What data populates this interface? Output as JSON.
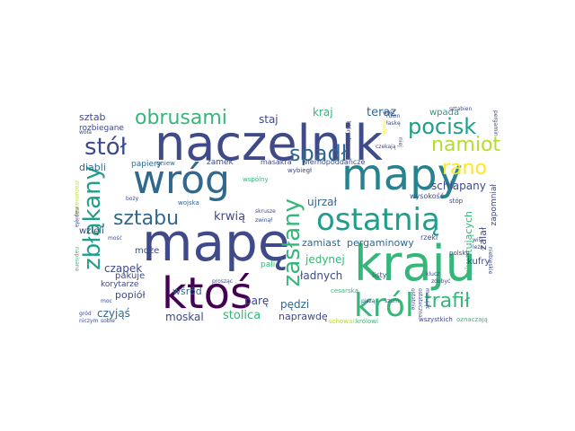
{
  "palette": {
    "dark_purple": "#440154",
    "indigo": "#482878",
    "slate_blue": "#3e4a89",
    "blue": "#31688e",
    "teal": "#26828e",
    "sea_green": "#1f9e89",
    "green": "#35b779",
    "light_green": "#6ece58",
    "lime": "#b5de2b",
    "yellow": "#fde725"
  },
  "words": [
    {
      "text": "naczelnik",
      "color": "#3e4a89"
    },
    {
      "text": "mapę",
      "color": "#3e4a89"
    },
    {
      "text": "wróg",
      "color": "#31688e"
    },
    {
      "text": "mapy",
      "color": "#26828e"
    },
    {
      "text": "kraju",
      "color": "#35b779"
    },
    {
      "text": "ktoś",
      "color": "#440154"
    },
    {
      "text": "ostatnią",
      "color": "#1f9e89"
    },
    {
      "text": "król",
      "color": "#35b779"
    },
    {
      "text": "zasłany",
      "color": "#35b779"
    },
    {
      "text": "zbłąkany",
      "color": "#1f9e89"
    },
    {
      "text": "obrusami",
      "color": "#35b779"
    },
    {
      "text": "stół",
      "color": "#3e4a89"
    },
    {
      "text": "spadł",
      "color": "#31688e"
    },
    {
      "text": "sztabu",
      "color": "#31688e"
    },
    {
      "text": "pocisk",
      "color": "#1f9e89"
    },
    {
      "text": "namiot",
      "color": "#b5de2b"
    },
    {
      "text": "rano",
      "color": "#fde725"
    },
    {
      "text": "trafił",
      "color": "#35b779"
    },
    {
      "text": "krwią",
      "color": "#3e4a89"
    },
    {
      "text": "sztab",
      "color": "#3e4a89"
    },
    {
      "text": "staj",
      "color": "#3e4a89"
    },
    {
      "text": "kraj",
      "color": "#35b779"
    },
    {
      "text": "teraz",
      "color": "#31688e"
    },
    {
      "text": "wpada",
      "color": "#1f9e89"
    },
    {
      "text": "ujrzał",
      "color": "#31688e"
    },
    {
      "text": "schlapany",
      "color": "#3e4a89"
    },
    {
      "text": "zamiast",
      "color": "#31688e"
    },
    {
      "text": "pergaminowy",
      "color": "#31688e"
    },
    {
      "text": "jedynej",
      "color": "#35b779"
    },
    {
      "text": "ładnych",
      "color": "#3e4a89"
    },
    {
      "text": "pędzi",
      "color": "#31688e"
    },
    {
      "text": "naprawdę",
      "color": "#3e4a89"
    },
    {
      "text": "stolica",
      "color": "#35b779"
    },
    {
      "text": "moskal",
      "color": "#3e4a89"
    },
    {
      "text": "czyjąś",
      "color": "#31688e"
    },
    {
      "text": "popiół",
      "color": "#3e4a89"
    },
    {
      "text": "czapek",
      "color": "#3e4a89"
    },
    {
      "text": "wśród",
      "color": "#31688e"
    },
    {
      "text": "parę",
      "color": "#3e4a89"
    },
    {
      "text": "może",
      "color": "#3e4a89"
    },
    {
      "text": "wzięli",
      "color": "#3e4a89"
    },
    {
      "text": "diabli",
      "color": "#31688e"
    },
    {
      "text": "papiery",
      "color": "#31688e"
    },
    {
      "text": "zamek",
      "color": "#3e4a89"
    },
    {
      "text": "pali",
      "color": "#35b779"
    },
    {
      "text": "pakuje",
      "color": "#3e4a89"
    },
    {
      "text": "korytarze",
      "color": "#3e4a89"
    },
    {
      "text": "rozbiegane",
      "color": "#3e4a89"
    },
    {
      "text": "wiwatujących",
      "color": "#35b779"
    },
    {
      "text": "zalał",
      "color": "#3e4a89"
    },
    {
      "text": "zapomniał",
      "color": "#3e4a89"
    },
    {
      "text": "kufry",
      "color": "#3e4a89"
    },
    {
      "text": "wiernopoddańcze",
      "color": "#3e4a89"
    },
    {
      "text": "masakra",
      "color": "#3e4a89"
    },
    {
      "text": "wybiegł",
      "color": "#3e4a89"
    },
    {
      "text": "wspólny",
      "color": "#35b779"
    },
    {
      "text": "wojska",
      "color": "#31688e"
    },
    {
      "text": "gniew",
      "color": "#31688e"
    },
    {
      "text": "wysokość",
      "color": "#3e4a89"
    },
    {
      "text": "stóp",
      "color": "#3e4a89"
    },
    {
      "text": "listy",
      "color": "#3e4a89"
    },
    {
      "text": "rzeki",
      "color": "#3e4a89"
    },
    {
      "text": "polskę",
      "color": "#3e4a89"
    },
    {
      "text": "wszystkich",
      "color": "#3e4a89"
    },
    {
      "text": "oznaczają",
      "color": "#35b779"
    },
    {
      "text": "cesarską",
      "color": "#35b779"
    },
    {
      "text": "królowi",
      "color": "#35b779"
    },
    {
      "text": "schowali",
      "color": "#b5de2b"
    },
    {
      "text": "piszą",
      "color": "#3e4a89"
    },
    {
      "text": "szum",
      "color": "#3e4a89"
    },
    {
      "text": "sobie",
      "color": "#3e4a89"
    },
    {
      "text": "niczym",
      "color": "#3e4a89"
    },
    {
      "text": "gród",
      "color": "#3e4a89"
    },
    {
      "text": "moc",
      "color": "#3e4a89"
    },
    {
      "text": "boży",
      "color": "#3e4a89"
    },
    {
      "text": "zwinął",
      "color": "#3e4a89"
    },
    {
      "text": "skrusze",
      "color": "#3e4a89"
    },
    {
      "text": "prosząc",
      "color": "#3e4a89"
    },
    {
      "text": "woła",
      "color": "#3e4a89"
    },
    {
      "text": "więc",
      "color": "#3e4a89"
    },
    {
      "text": "łaskę",
      "color": "#3e4a89"
    },
    {
      "text": "ruion",
      "color": "#3e4a89"
    },
    {
      "text": "sztabien",
      "color": "#3e4a89"
    },
    {
      "text": "pergamin",
      "color": "#3e4a89"
    },
    {
      "text": "czekają",
      "color": "#3e4a89"
    },
    {
      "text": "których",
      "color": "#3e4a89"
    },
    {
      "text": "może",
      "color": "#fde725"
    },
    {
      "text": "niej",
      "color": "#3e4a89"
    },
    {
      "text": "napisane",
      "color": "#35b779"
    },
    {
      "text": "zrozumiawali",
      "color": "#b5de2b"
    },
    {
      "text": "napięła",
      "color": "#3e4a89"
    },
    {
      "text": "mość",
      "color": "#3e4a89"
    },
    {
      "text": "ostatnie",
      "color": "#3e4a89"
    },
    {
      "text": "ostateczna",
      "color": "#3e4a89"
    },
    {
      "text": "mołując",
      "color": "#3e4a89"
    },
    {
      "text": "zdobyć",
      "color": "#3e4a89"
    },
    {
      "text": "klucz",
      "color": "#3e4a89"
    },
    {
      "text": "niebieskie",
      "color": "#3e4a89"
    },
    {
      "text": "wisi",
      "color": "#3e4a89"
    },
    {
      "text": "leżą",
      "color": "#3e4a89"
    }
  ]
}
